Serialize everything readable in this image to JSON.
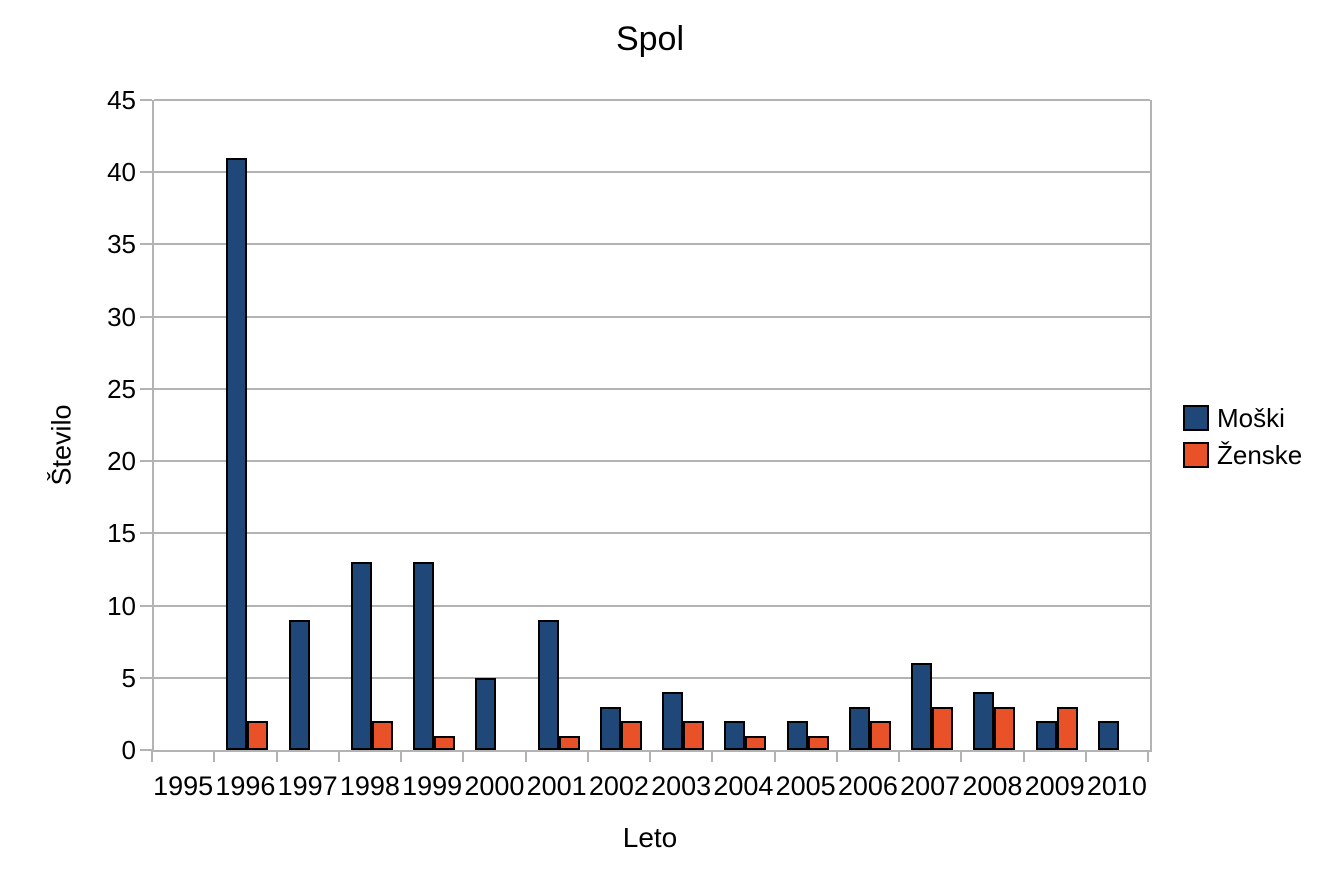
{
  "chart_data": {
    "type": "bar",
    "title": "Spol",
    "xlabel": "Leto",
    "ylabel": "Število",
    "categories": [
      "1995",
      "1996",
      "1997",
      "1998",
      "1999",
      "2000",
      "2001",
      "2002",
      "2003",
      "2004",
      "2005",
      "2006",
      "2007",
      "2008",
      "2009",
      "2010"
    ],
    "series": [
      {
        "name": "Moški",
        "color": "#1F4878",
        "values": [
          0,
          41,
          9,
          13,
          13,
          5,
          9,
          3,
          4,
          2,
          2,
          3,
          6,
          4,
          2,
          2
        ]
      },
      {
        "name": "Ženske",
        "color": "#E95228",
        "values": [
          0,
          2,
          0,
          2,
          1,
          0,
          1,
          2,
          2,
          1,
          1,
          2,
          3,
          3,
          3,
          0
        ]
      }
    ],
    "ylim": [
      0,
      45
    ],
    "ytick_step": 5,
    "grid": true,
    "legend_position": "right",
    "bar_outline_color": "#000000",
    "axis_color": "#b3b3b3",
    "background_color": "#ffffff"
  }
}
